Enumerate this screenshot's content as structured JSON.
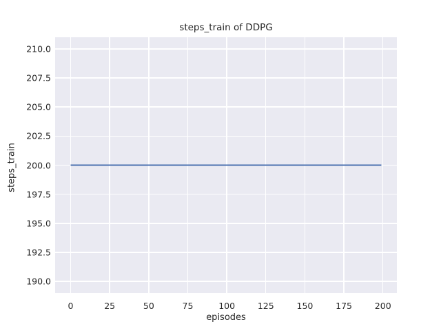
{
  "chart_data": {
    "type": "line",
    "title": "steps_train of DDPG",
    "xlabel": "episodes",
    "ylabel": "steps_train",
    "xlim": [
      -9.95,
      208.95
    ],
    "ylim": [
      189,
      211
    ],
    "xticks": [
      0,
      25,
      50,
      75,
      100,
      125,
      150,
      175,
      200
    ],
    "xtick_labels": [
      "0",
      "25",
      "50",
      "75",
      "100",
      "125",
      "150",
      "175",
      "200"
    ],
    "yticks": [
      190.0,
      192.5,
      195.0,
      197.5,
      200.0,
      202.5,
      205.0,
      207.5,
      210.0
    ],
    "ytick_labels": [
      "190.0",
      "192.5",
      "195.0",
      "197.5",
      "200.0",
      "202.5",
      "205.0",
      "207.5",
      "210.0"
    ],
    "grid": true,
    "legend": "none",
    "series": [
      {
        "name": "steps_train",
        "color": "#4C72B0",
        "x": [
          0,
          199
        ],
        "y": [
          200,
          200
        ]
      }
    ]
  },
  "colors": {
    "figure_background": "#FFFFFF",
    "axes_background": "#EAEAF2",
    "grid": "#FFFFFF",
    "line": "#4C72B0",
    "text": "#262626"
  }
}
